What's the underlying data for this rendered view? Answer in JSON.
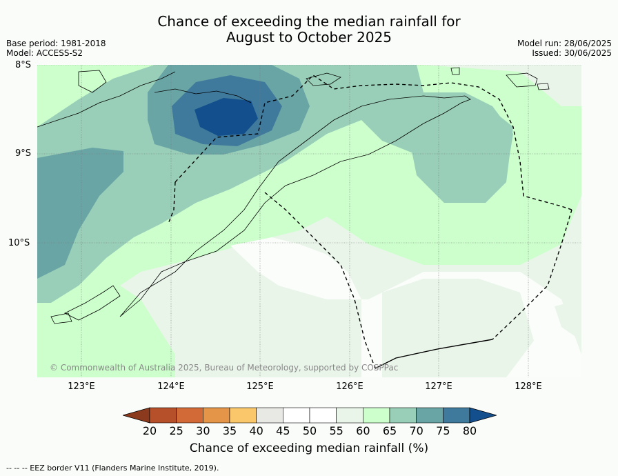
{
  "title_line1": "Chance of exceeding the median rainfall for",
  "title_line2": "August to October 2025",
  "base_period": "Base period: 1981-2018",
  "model": "Model: ACCESS-S2",
  "model_run": "Model run: 28/06/2025",
  "issued": "Issued: 30/06/2025",
  "lat_labels": [
    "8°S",
    "9°S",
    "10°S"
  ],
  "lon_labels": [
    "123°E",
    "124°E",
    "125°E",
    "126°E",
    "127°E",
    "128°E"
  ],
  "copyright": "© Commonwealth of Australia 2025, Bureau of Meteorology, supported by COSPPac",
  "colorbar": {
    "ticks": [
      "20",
      "25",
      "30",
      "35",
      "40",
      "45",
      "50",
      "55",
      "60",
      "65",
      "70",
      "75",
      "80"
    ],
    "label": "Chance of exceeding median rainfall (%)",
    "colors": [
      "#8b3a1e",
      "#b5502a",
      "#d26a38",
      "#e49548",
      "#fac86a",
      "#e8e9e4",
      "#ffffff",
      "#ffffff",
      "#eaf5ea",
      "#ccffcc",
      "#99cfb8",
      "#6aa5a6",
      "#3f7a9c",
      "#124f8c"
    ]
  },
  "eez_legend": "--  --  -- EEZ border V11 (Flanders Marine Institute, 2019)."
}
